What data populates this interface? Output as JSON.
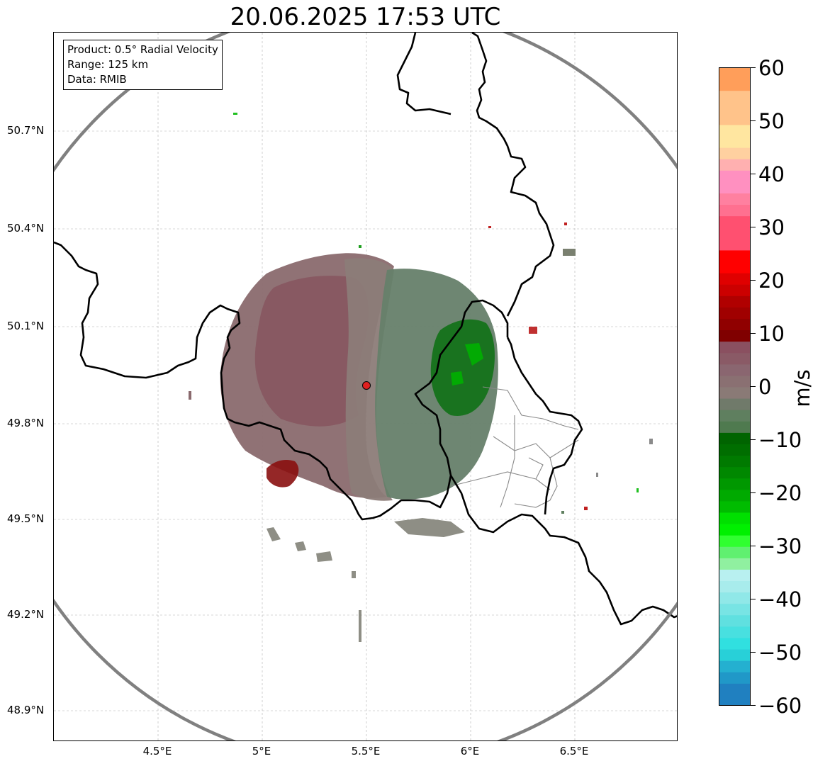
{
  "title": "20.06.2025 17:53 UTC",
  "info_box": {
    "product": "Product: 0.5° Radial Velocity",
    "range": "Range: 125 km",
    "data": "Data: RMIB"
  },
  "lat_labels": [
    "50.7°N",
    "50.4°N",
    "50.1°N",
    "49.8°N",
    "49.5°N",
    "49.2°N",
    "48.9°N"
  ],
  "lon_labels": [
    "4.5°E",
    "5°E",
    "5.5°E",
    "6°E",
    "6.5°E"
  ],
  "radar_site": {
    "lon": 5.5,
    "lat": 49.91,
    "icon": "radar-site-marker-icon"
  },
  "colorbar": {
    "unit": "m/s",
    "min": -60,
    "max": 60,
    "tick_labels": [
      "60",
      "50",
      "40",
      "30",
      "20",
      "10",
      "0",
      "−10",
      "−20",
      "−30",
      "−40",
      "−50",
      "−60"
    ],
    "colors": {
      "ramp_top": "#ff9e5a",
      "peach": "#ffc38a",
      "yellow": "#ffe6a0",
      "pink": "#ff90c0",
      "red_pink": "#ff5070",
      "red": "#ff0000",
      "dark_red": "#800000",
      "mauve": "#8a5060",
      "gray_brown": "#8a7a76",
      "gray_green": "#5f7f5f",
      "dark_green": "#006400",
      "green": "#00e000",
      "light_green": "#90f0a0",
      "pale_cyan": "#b8f0f0",
      "cyan": "#30e0e0",
      "blue": "#2080c0"
    }
  }
}
